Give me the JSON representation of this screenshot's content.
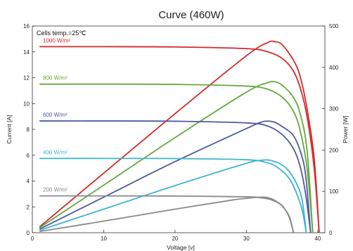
{
  "chart_data": {
    "type": "line",
    "title": "Curve (460W)",
    "xlabel": "Voltage [v]",
    "ylabel_left": "Current [A]",
    "ylabel_right": "Power [W]",
    "xlim": [
      0,
      41
    ],
    "ylim_left": [
      0,
      16
    ],
    "ylim_right": [
      0,
      500
    ],
    "x_ticks": [
      "0",
      "10",
      "20",
      "30",
      "40"
    ],
    "y_left_ticks": [
      "0",
      "2",
      "4",
      "6",
      "8",
      "10",
      "12",
      "14",
      "16"
    ],
    "y_right_ticks": [
      "0",
      "100",
      "200",
      "300",
      "400",
      "500"
    ],
    "grid": false,
    "annotation": "Cells temp.=25℃",
    "series": [
      {
        "name": "1000 W/m²",
        "color": "#d42a2a",
        "iv": {
          "x": [
            1,
            10,
            20,
            30,
            33,
            35,
            36.5,
            37.5,
            38.5,
            39.5,
            40.2
          ],
          "y": [
            14.4,
            14.4,
            14.38,
            14.25,
            14.0,
            13.5,
            12.6,
            11.3,
            9.0,
            5.0,
            0
          ]
        },
        "pv": {
          "x": [
            1,
            10,
            20,
            30,
            33,
            34,
            35,
            36.5,
            37.5,
            38.5,
            39.5,
            40.2
          ],
          "y": [
            14,
            144,
            288,
            428,
            460,
            462,
            455,
            420,
            380,
            300,
            180,
            0
          ]
        }
      },
      {
        "name": "800 W/m²",
        "color": "#67a83c",
        "iv": {
          "x": [
            1,
            10,
            20,
            30,
            33,
            35,
            36.5,
            37.5,
            38.5,
            39.3
          ],
          "y": [
            11.5,
            11.5,
            11.48,
            11.35,
            11.1,
            10.5,
            9.5,
            8.0,
            5.0,
            0
          ]
        },
        "pv": {
          "x": [
            1,
            10,
            20,
            30,
            33,
            34,
            35,
            36.5,
            37.5,
            38.5,
            39.3
          ],
          "y": [
            12,
            115,
            230,
            340,
            363,
            365,
            357,
            330,
            290,
            200,
            0
          ]
        }
      },
      {
        "name": "600 W/m²",
        "color": "#4e5b9e",
        "iv": {
          "x": [
            1,
            10,
            20,
            30,
            33,
            35,
            36.5,
            37.5,
            38.3,
            39
          ],
          "y": [
            8.65,
            8.65,
            8.63,
            8.5,
            8.25,
            7.6,
            6.6,
            5.2,
            3.0,
            0
          ]
        },
        "pv": {
          "x": [
            1,
            10,
            20,
            30,
            32,
            33,
            34,
            35,
            36.5,
            37.5,
            38.3,
            39
          ],
          "y": [
            8.6,
            86,
            172,
            252,
            267,
            270,
            267,
            257,
            237,
            200,
            140,
            0
          ]
        }
      },
      {
        "name": "400 W/m²",
        "color": "#3fb4cf",
        "iv": {
          "x": [
            1,
            10,
            20,
            30,
            33,
            34.5,
            36,
            37,
            37.8,
            38.4
          ],
          "y": [
            5.75,
            5.75,
            5.74,
            5.65,
            5.4,
            5.0,
            4.2,
            3.1,
            1.8,
            0
          ]
        },
        "pv": {
          "x": [
            1,
            10,
            20,
            30,
            32,
            33,
            34,
            35,
            36,
            37,
            37.8,
            38.4
          ],
          "y": [
            5.8,
            57,
            114,
            168,
            175,
            176,
            172,
            164,
            148,
            120,
            80,
            0
          ]
        }
      },
      {
        "name": "200 W/m²",
        "color": "#8a8a8a",
        "iv": {
          "x": [
            1,
            10,
            20,
            30,
            32,
            33.5,
            35,
            36,
            36.6
          ],
          "y": [
            2.85,
            2.85,
            2.84,
            2.78,
            2.7,
            2.55,
            2.1,
            1.2,
            0
          ]
        },
        "pv": {
          "x": [
            1,
            10,
            20,
            28,
            30,
            31,
            32,
            33,
            34,
            35,
            36,
            36.6
          ],
          "y": [
            2.9,
            28,
            57,
            79,
            83,
            85,
            86,
            85,
            78,
            65,
            40,
            0
          ]
        }
      }
    ]
  }
}
